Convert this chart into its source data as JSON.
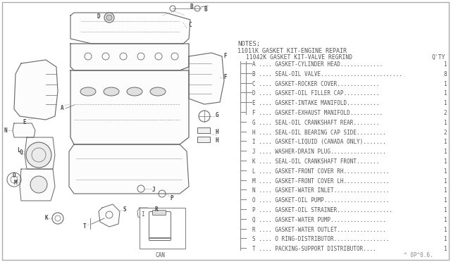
{
  "bg_color": "#ffffff",
  "notes_header": "NOTES;",
  "kit1": "1101lK GASKET KIT-ENGINE REPAIR",
  "kit2": "11042K GASKET KIT-VALVE REGRIND",
  "qty_label": "Q'TY",
  "parts": [
    {
      "code": "A",
      "desc": "GASKET-CYLINDER HEAD",
      "dots": ".............",
      "qty": "1",
      "inner": true
    },
    {
      "code": "B",
      "desc": "SEAL-OIL VALVE",
      "dots": ".........................",
      "qty": "8",
      "inner": true
    },
    {
      "code": "C",
      "desc": "GASKET-ROCKER COVER",
      "dots": ".............",
      "qty": "1",
      "inner": true
    },
    {
      "code": "D",
      "desc": "GASKET-OIL FILLER CAP",
      "dots": "...........",
      "qty": "1",
      "inner": true
    },
    {
      "code": "E",
      "desc": "GASKET-INTAKE MANIFOLD",
      "dots": "..........",
      "qty": "1",
      "inner": true
    },
    {
      "code": "F",
      "desc": "GASKET-EXHAUST MANIFOLD",
      "dots": "..........",
      "qty": "2",
      "inner": false
    },
    {
      "code": "G",
      "desc": "SEAL-OIL CRANKSHAFT REAR",
      "dots": "........",
      "qty": "1",
      "inner": false
    },
    {
      "code": "H",
      "desc": "SEAL-OIL BEARING CAP SIDE",
      "dots": ".........",
      "qty": "2",
      "inner": false
    },
    {
      "code": "I",
      "desc": "GASKET-LIQUID (CANADA ONLY)",
      "dots": ".......",
      "qty": "1",
      "inner": false
    },
    {
      "code": "J",
      "desc": "WASHER-DRAIN PLUG",
      "dots": ".................",
      "qty": "1",
      "inner": false
    },
    {
      "code": "K",
      "desc": "SEAL-OIL CRANKSHAFT FRONT",
      "dots": ".......",
      "qty": "1",
      "inner": false
    },
    {
      "code": "L",
      "desc": "GASKET-FRONT COVER RH",
      "dots": "..............",
      "qty": "1",
      "inner": false
    },
    {
      "code": "M",
      "desc": "GASKET-FRONT COVER LH",
      "dots": "..............",
      "qty": "1",
      "inner": false
    },
    {
      "code": "N",
      "desc": "GASKET-WATER INLET",
      "dots": ".................",
      "qty": "1",
      "inner": false
    },
    {
      "code": "O",
      "desc": "GASKET-OIL PUMP",
      "dots": "....................",
      "qty": "1",
      "inner": false
    },
    {
      "code": "P",
      "desc": "GASKET-OIL STRAINER",
      "dots": ".................",
      "qty": "1",
      "inner": false
    },
    {
      "code": "Q",
      "desc": "GASKET-WATER PUMP",
      "dots": ".................",
      "qty": "1",
      "inner": false
    },
    {
      "code": "R",
      "desc": "GASKET-WATER OUTLET",
      "dots": "...............",
      "qty": "1",
      "inner": false
    },
    {
      "code": "S",
      "desc": "O RING-DISTRIBUTOR",
      "dots": ".................",
      "qty": "1",
      "inner": false
    },
    {
      "code": "T",
      "desc": "PACKING-SUPPORT DISTRIBUTOR",
      "dots": "....",
      "qty": "1",
      "inner": false
    }
  ],
  "footer": "^ 0P^0.6.",
  "text_color": "#555555",
  "line_color": "#777777"
}
